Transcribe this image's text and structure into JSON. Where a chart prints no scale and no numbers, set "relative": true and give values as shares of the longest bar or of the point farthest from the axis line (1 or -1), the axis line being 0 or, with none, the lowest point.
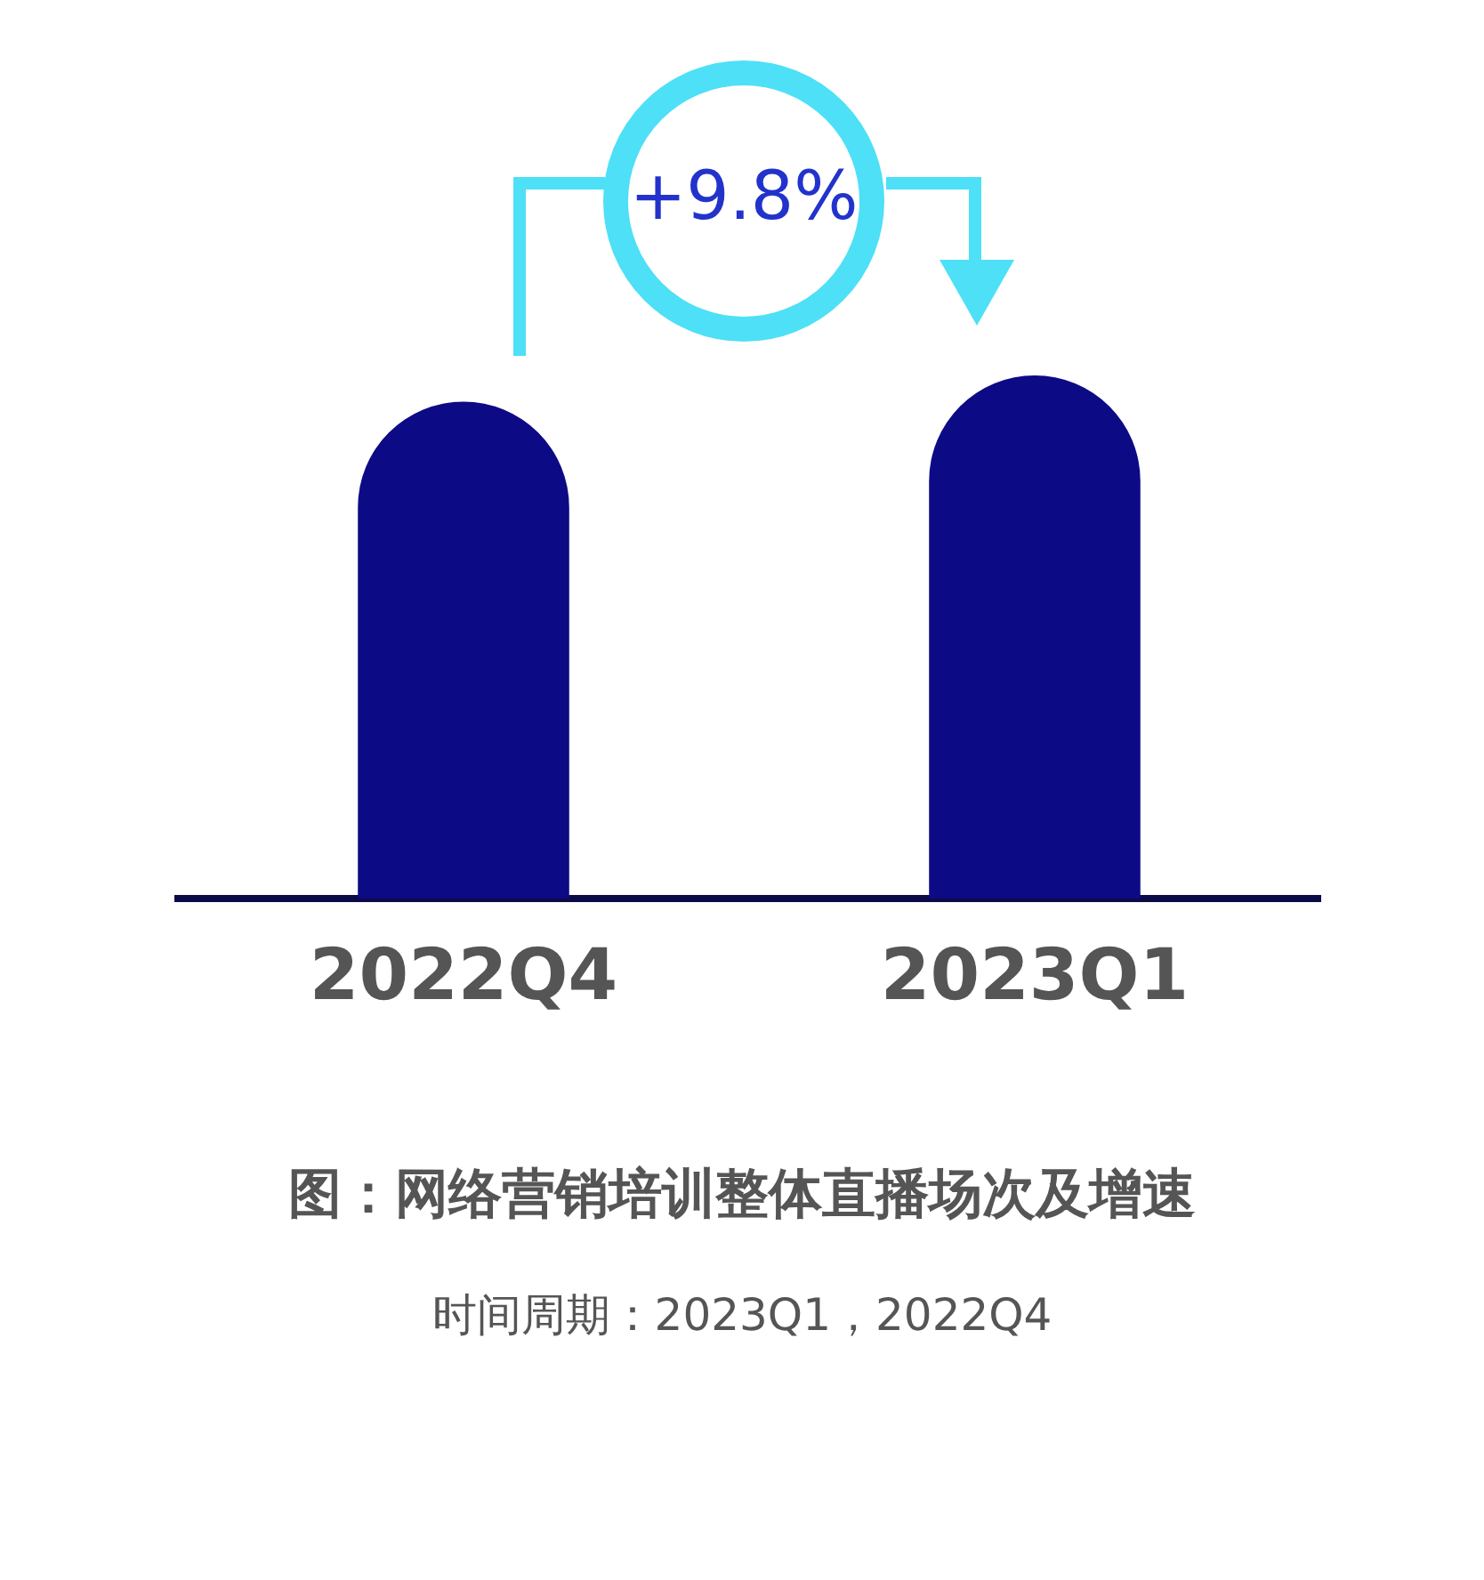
{
  "chart_data": {
    "type": "bar",
    "relative": true,
    "title": "图：网络营销培训整体直播场次及增速",
    "categories": [
      "2022Q4",
      "2023Q1"
    ],
    "values": [
      0.95,
      1
    ],
    "color": "#0d0a85",
    "annotations": [
      "+9.8%",
      "时间周期：2023Q1，2022Q4"
    ],
    "grid": false,
    "legend": false
  }
}
